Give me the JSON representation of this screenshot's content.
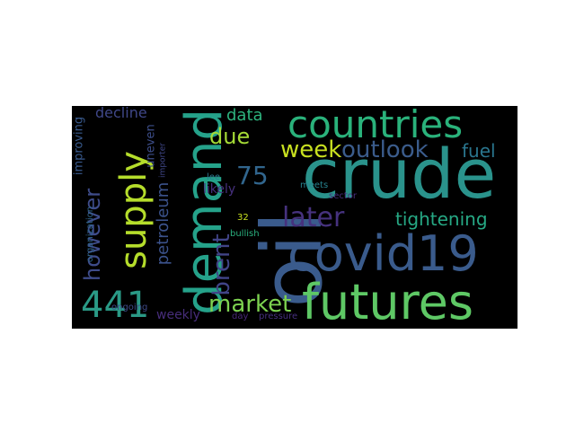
{
  "words": [
    {
      "text": "crude",
      "color": "#2a938c"
    },
    {
      "text": "oil",
      "color": "#3a5b8c"
    },
    {
      "text": "demand",
      "color": "#25a28a"
    },
    {
      "text": "covid19",
      "color": "#3a5b8c"
    },
    {
      "text": "futures",
      "color": "#5ec865"
    },
    {
      "text": "countries",
      "color": "#2ab27b"
    },
    {
      "text": "supply",
      "color": "#b5dd2b"
    },
    {
      "text": "outlook",
      "color": "#3b5c8c"
    },
    {
      "text": "week",
      "color": "#c8e020"
    },
    {
      "text": "later",
      "color": "#46327e"
    },
    {
      "text": "441",
      "color": "#2a9a86"
    },
    {
      "text": "market",
      "color": "#7dd250"
    },
    {
      "text": "tightening",
      "color": "#26a884"
    },
    {
      "text": "however",
      "color": "#3e4c8a"
    },
    {
      "text": "due",
      "color": "#a5db36"
    },
    {
      "text": "75",
      "color": "#31668e"
    },
    {
      "text": "brent",
      "color": "#414487"
    },
    {
      "text": "data",
      "color": "#2db27d"
    },
    {
      "text": "fuel",
      "color": "#2a768e"
    },
    {
      "text": "petroleum",
      "color": "#3b528b"
    },
    {
      "text": "decline",
      "color": "#3f4788"
    },
    {
      "text": "weekly",
      "color": "#472d7b"
    },
    {
      "text": "likely",
      "color": "#46307e"
    },
    {
      "text": "improving",
      "color": "#38598c"
    },
    {
      "text": "uneven",
      "color": "#3d4e8a"
    },
    {
      "text": "organization",
      "color": "#31668e"
    },
    {
      "text": "importer",
      "color": "#3f4788"
    },
    {
      "text": "ongoing",
      "color": "#3e4a89"
    },
    {
      "text": "day",
      "color": "#482878"
    },
    {
      "text": "pressure",
      "color": "#46307e"
    },
    {
      "text": "bullish",
      "color": "#2ab07f"
    },
    {
      "text": "32",
      "color": "#c8e020"
    },
    {
      "text": "lee",
      "color": "#2a788e"
    },
    {
      "text": "meets",
      "color": "#26828e"
    },
    {
      "text": "sector",
      "color": "#472d7b"
    }
  ]
}
